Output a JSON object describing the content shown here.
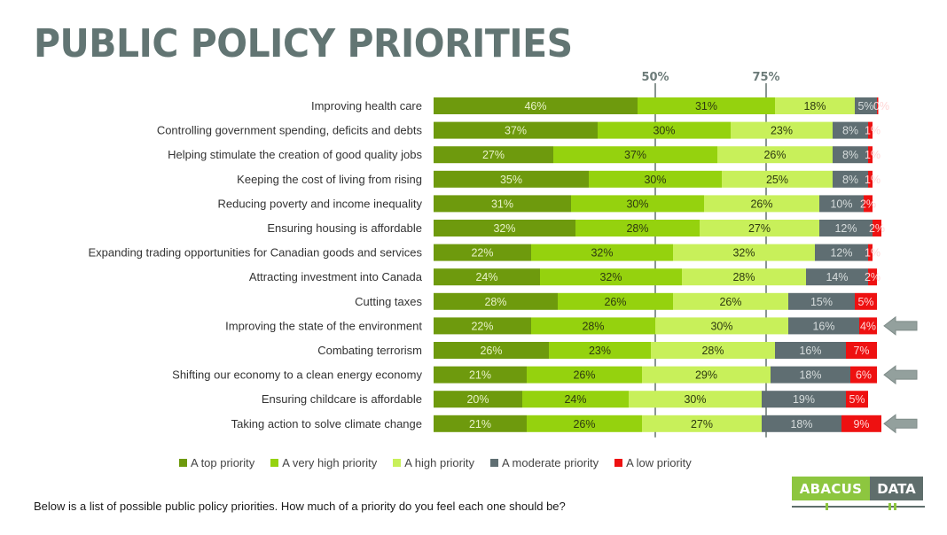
{
  "title": "PUBLIC POLICY PRIORITIES",
  "question": "Below is a list of possible public policy priorities. How much of a priority do you feel each one should be?",
  "logo": {
    "left": "ABACUS",
    "right": "DATA"
  },
  "chart_data": {
    "type": "bar",
    "orientation": "horizontal",
    "stacked": true,
    "title": "PUBLIC POLICY PRIORITIES",
    "xlabel": "",
    "ylabel": "",
    "xlim": [
      0,
      100
    ],
    "reference_lines": [
      {
        "value": 50,
        "label": "50%"
      },
      {
        "value": 75,
        "label": "75%"
      }
    ],
    "legend_position": "bottom",
    "categories": [
      "Improving health care",
      "Controlling government spending, deficits and debts",
      "Helping stimulate the creation of good quality jobs",
      "Keeping the cost of living from rising",
      "Reducing poverty and income inequality",
      "Ensuring housing is affordable",
      "Expanding trading opportunities for Canadian goods and services",
      "Attracting investment into Canada",
      "Cutting taxes",
      "Improving the state of the environment",
      "Combating terrorism",
      "Shifting our economy to a clean energy economy",
      "Ensuring childcare is affordable",
      "Taking action to solve climate change"
    ],
    "series": [
      {
        "name": "A top priority",
        "color": "#6e9a0d",
        "label_color": "#e8f2c8",
        "values": [
          46,
          37,
          27,
          35,
          31,
          32,
          22,
          24,
          28,
          22,
          26,
          21,
          20,
          21
        ]
      },
      {
        "name": "A very high priority",
        "color": "#95d20e",
        "label_color": "#2e3a10",
        "values": [
          31,
          30,
          37,
          30,
          30,
          28,
          32,
          32,
          26,
          28,
          23,
          26,
          24,
          26
        ]
      },
      {
        "name": "A high priority",
        "color": "#c8f05a",
        "label_color": "#2e3a10",
        "values": [
          18,
          23,
          26,
          25,
          26,
          27,
          32,
          28,
          26,
          30,
          28,
          29,
          30,
          27
        ]
      },
      {
        "name": "A moderate priority",
        "color": "#5f6e72",
        "label_color": "#d6dcdc",
        "values": [
          5,
          8,
          8,
          8,
          10,
          12,
          12,
          14,
          15,
          16,
          16,
          18,
          19,
          18
        ]
      },
      {
        "name": "A low priority",
        "color": "#ee1111",
        "label_color": "#ffd6d6",
        "values": [
          0,
          1,
          1,
          1,
          2,
          2,
          1,
          2,
          5,
          4,
          7,
          6,
          5,
          9
        ]
      }
    ],
    "highlighted_categories": [
      "Improving the state of the environment",
      "Shifting our economy to a clean energy economy",
      "Taking action to solve climate change"
    ],
    "highlight_marker": "arrow-left-icon"
  }
}
